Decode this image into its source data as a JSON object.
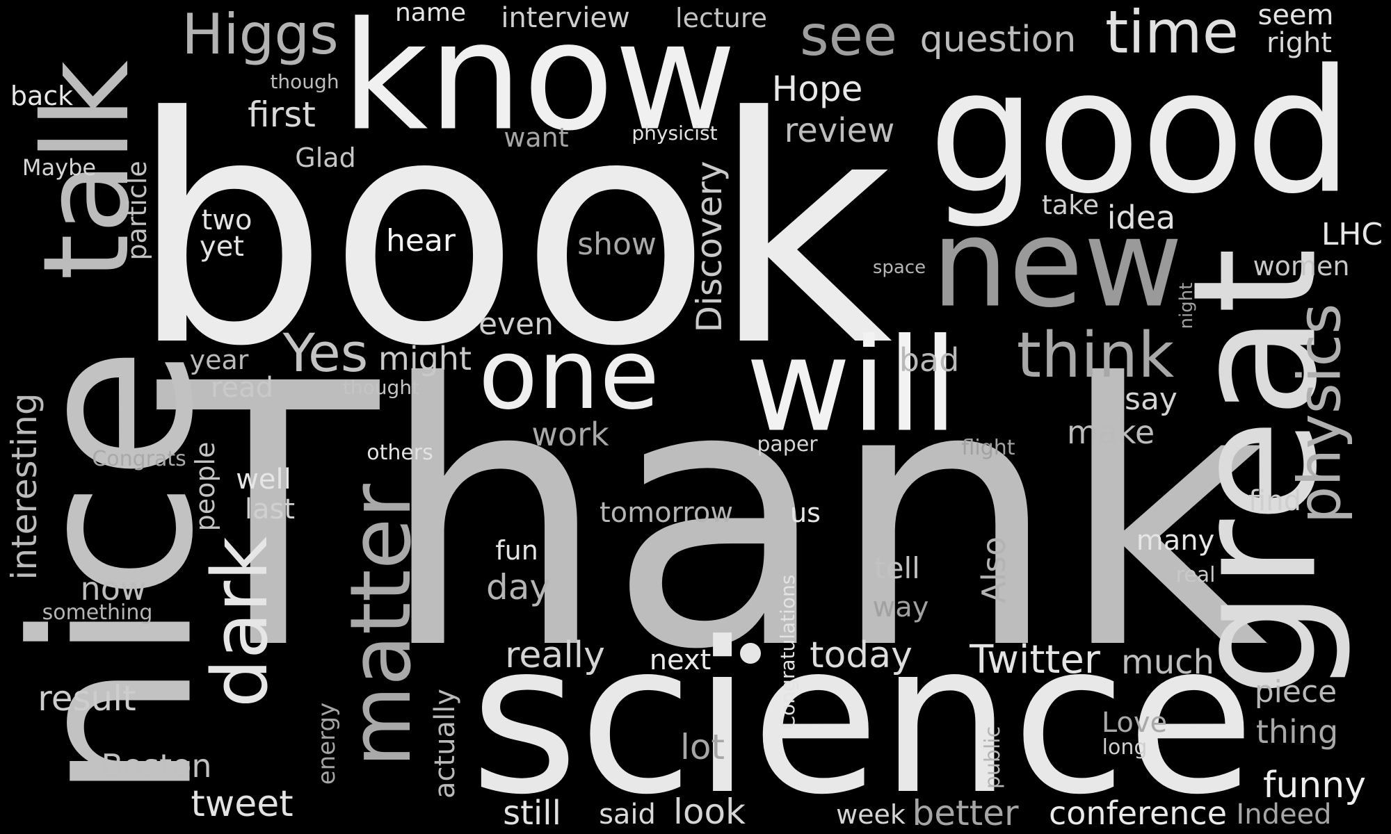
{
  "words": [
    {
      "text": "Thank",
      "color": "#bdbdbd"
    },
    {
      "text": "book",
      "color": "#ececec"
    },
    {
      "text": "science",
      "color": "#e8e8e8"
    },
    {
      "text": "good",
      "color": "#ececec"
    },
    {
      "text": "great",
      "color": "#dcdcdc"
    },
    {
      "text": "nice",
      "color": "#c2c2c2"
    },
    {
      "text": "know",
      "color": "#f0f0f0"
    },
    {
      "text": "will",
      "color": "#f2f2f2"
    },
    {
      "text": "new",
      "color": "#9a9a9a"
    },
    {
      "text": "one",
      "color": "#efefef"
    },
    {
      "text": "talk",
      "color": "#bcbcbc"
    },
    {
      "text": "matter",
      "color": "#a9a9a9"
    },
    {
      "text": "dark",
      "color": "#e6e6e6"
    },
    {
      "text": "physics",
      "color": "#b0b0b0"
    },
    {
      "text": "think",
      "color": "#a8a8a8"
    },
    {
      "text": "time",
      "color": "#e0e0e0"
    },
    {
      "text": "Higgs",
      "color": "#b3b3b3"
    },
    {
      "text": "see",
      "color": "#9e9e9e"
    },
    {
      "text": "Yes",
      "color": "#c4c4c4"
    },
    {
      "text": "Twitter",
      "color": "#e4e4e4"
    },
    {
      "text": "question",
      "color": "#bcbcbc"
    },
    {
      "text": "Discovery",
      "color": "#c9c9c9"
    },
    {
      "text": "interesting",
      "color": "#bbbbbb"
    },
    {
      "text": "funny",
      "color": "#eeeeee"
    },
    {
      "text": "conference",
      "color": "#eaeaea"
    },
    {
      "text": "better",
      "color": "#a5a5a5"
    },
    {
      "text": "tweet",
      "color": "#e3e3e3"
    },
    {
      "text": "result",
      "color": "#cdcdcd"
    },
    {
      "text": "Boston",
      "color": "#c1c1c1"
    },
    {
      "text": "really",
      "color": "#d4d4d4"
    },
    {
      "text": "today",
      "color": "#dddddd"
    },
    {
      "text": "much",
      "color": "#bdbdbd"
    },
    {
      "text": "look",
      "color": "#d5d5d5"
    },
    {
      "text": "lot",
      "color": "#a6a6a6"
    },
    {
      "text": "still",
      "color": "#e2e2e2"
    },
    {
      "text": "said",
      "color": "#dadada"
    },
    {
      "text": "week",
      "color": "#d5d5d5"
    },
    {
      "text": "thing",
      "color": "#a8a8a8"
    },
    {
      "text": "piece",
      "color": "#b9b9b9"
    },
    {
      "text": "Indeed",
      "color": "#a6a6a6"
    },
    {
      "text": "Hope",
      "color": "#e8e8e8"
    },
    {
      "text": "review",
      "color": "#bdbdbd"
    },
    {
      "text": "first",
      "color": "#d9d9d9"
    },
    {
      "text": "hear",
      "color": "#f2f2f2"
    },
    {
      "text": "show",
      "color": "#a9a9a9"
    },
    {
      "text": "even",
      "color": "#cfcfcf"
    },
    {
      "text": "might",
      "color": "#c9c9c9"
    },
    {
      "text": "year",
      "color": "#bbbbbb"
    },
    {
      "text": "read",
      "color": "#c9c9c9"
    },
    {
      "text": "work",
      "color": "#a9a9a9"
    },
    {
      "text": "bad",
      "color": "#b9b9b9"
    },
    {
      "text": "say",
      "color": "#d4d4d4"
    },
    {
      "text": "make",
      "color": "#bbbbbb"
    },
    {
      "text": "idea",
      "color": "#e0e0e0"
    },
    {
      "text": "LHC",
      "color": "#e6e6e6"
    },
    {
      "text": "women",
      "color": "#c7c7c7"
    },
    {
      "text": "seem",
      "color": "#e3e3e3"
    },
    {
      "text": "right",
      "color": "#d9d9d9"
    },
    {
      "text": "name",
      "color": "#e6e6e6"
    },
    {
      "text": "interview",
      "color": "#cfcfcf"
    },
    {
      "text": "lecture",
      "color": "#c4c4c4"
    },
    {
      "text": "back",
      "color": "#e7e7e7"
    },
    {
      "text": "though",
      "color": "#bdbdbd"
    },
    {
      "text": "Maybe",
      "color": "#d5d5d5"
    },
    {
      "text": "particle",
      "color": "#c2c2c2"
    },
    {
      "text": "Glad",
      "color": "#c7c7c7"
    },
    {
      "text": "two",
      "color": "#e3e3e3"
    },
    {
      "text": "yet",
      "color": "#e3e3e3"
    },
    {
      "text": "want",
      "color": "#a6a6a6"
    },
    {
      "text": "physicist",
      "color": "#e3e3e3"
    },
    {
      "text": "take",
      "color": "#cfcfcf"
    },
    {
      "text": "space",
      "color": "#b5b5b5"
    },
    {
      "text": "night",
      "color": "#a1a1a1"
    },
    {
      "text": "people",
      "color": "#c4c4c4"
    },
    {
      "text": "thought",
      "color": "#c4c4c4"
    },
    {
      "text": "Congrats",
      "color": "#a9a9a9"
    },
    {
      "text": "others",
      "color": "#e3e3e3"
    },
    {
      "text": "paper",
      "color": "#d5d5d5"
    },
    {
      "text": "flight",
      "color": "#a1a1a1"
    },
    {
      "text": "well",
      "color": "#e6e6e6"
    },
    {
      "text": "last",
      "color": "#d0d0d0"
    },
    {
      "text": "tomorrow",
      "color": "#b5b5b5"
    },
    {
      "text": "us",
      "color": "#e6e6e6"
    },
    {
      "text": "find",
      "color": "#cfcfcf"
    },
    {
      "text": "many",
      "color": "#e6e6e6"
    },
    {
      "text": "real",
      "color": "#c9c9c9"
    },
    {
      "text": "fun",
      "color": "#e3e3e3"
    },
    {
      "text": "day",
      "color": "#b5b5b5"
    },
    {
      "text": "now",
      "color": "#bdbdbd"
    },
    {
      "text": "something",
      "color": "#b5b5b5"
    },
    {
      "text": "tell",
      "color": "#c2c2c2"
    },
    {
      "text": "way",
      "color": "#a1a1a1"
    },
    {
      "text": "Also",
      "color": "#b3b3b3"
    },
    {
      "text": "Congratulations",
      "color": "#e3e3e3"
    },
    {
      "text": "next",
      "color": "#eaeaea"
    },
    {
      "text": "actually",
      "color": "#b9b9b9"
    },
    {
      "text": "energy",
      "color": "#a5a5a5"
    },
    {
      "text": "public",
      "color": "#b5b5b5"
    },
    {
      "text": "Love",
      "color": "#a9a9a9"
    },
    {
      "text": "long",
      "color": "#cfcfcf"
    },
    {
      "text": "dot",
      "color": "#e6e6e6"
    }
  ]
}
